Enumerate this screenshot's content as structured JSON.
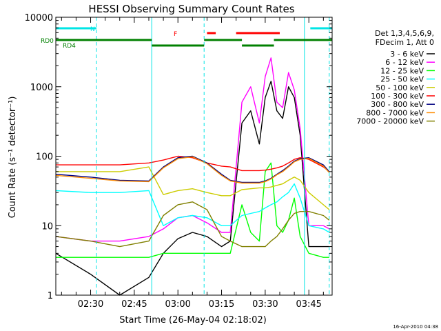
{
  "chart_data": {
    "type": "line",
    "title": "HESSI Observing Summary Count Rates",
    "xlabel": "Start Time (26-May-04 02:18:02)",
    "ylabel": "Count Rate (s⁻¹ detector⁻¹)",
    "yscale": "log",
    "xlim": [
      "02:18:02",
      "03:53:00"
    ],
    "ylim": [
      1,
      10000
    ],
    "x_ticks": [
      "02:30",
      "02:45",
      "03:00",
      "03:15",
      "03:30",
      "03:45"
    ],
    "y_ticks": [
      "1",
      "10",
      "100",
      "1000",
      "10000"
    ],
    "footer_date": "16-Apr-2010 04:38",
    "legend": {
      "header": [
        "Det 1,3,4,5,6,9,",
        "FDecim 1, Att 0"
      ],
      "placement": "right"
    },
    "flags": [
      {
        "name": "N",
        "color": "#00e5e5",
        "intervals": [
          [
            "02:18:02",
            "02:32:00"
          ],
          [
            "03:45:30",
            "03:53:00"
          ]
        ]
      },
      {
        "name": "F",
        "color": "#ff0000",
        "intervals": [
          [
            "03:10:00",
            "03:13:00"
          ],
          [
            "03:20:00",
            "03:35:00"
          ]
        ]
      },
      {
        "name": "RD0",
        "color": "#008000",
        "intervals": [
          [
            "02:18:02",
            "02:51:00"
          ],
          [
            "03:09:00",
            "03:22:00"
          ],
          [
            "03:33:00",
            "03:53:00"
          ]
        ]
      },
      {
        "name": "RD4",
        "color": "#008000",
        "intervals": [
          [
            "02:51:00",
            "03:09:00"
          ],
          [
            "03:22:00",
            "03:33:00"
          ]
        ]
      }
    ],
    "boundaries_cyan": [
      "02:18:02",
      "02:32:00",
      "02:51:00",
      "03:09:00",
      "03:43:30",
      "03:52:00"
    ],
    "series": [
      {
        "name": "3 - 6 keV",
        "color": "#000000",
        "x": [
          "02:18",
          "02:30",
          "02:40",
          "02:50",
          "02:55",
          "03:00",
          "03:05",
          "03:10",
          "03:15",
          "03:18",
          "03:22",
          "03:25",
          "03:28",
          "03:30",
          "03:32",
          "03:34",
          "03:36",
          "03:38",
          "03:40",
          "03:42",
          "03:45",
          "03:50",
          "03:52"
        ],
        "values": [
          4,
          2,
          1,
          1.8,
          4,
          6.5,
          8,
          7,
          5,
          6,
          300,
          450,
          150,
          700,
          1200,
          450,
          350,
          1000,
          700,
          200,
          5,
          5,
          5
        ]
      },
      {
        "name": "6 - 12 keV",
        "color": "#ff00ff",
        "x": [
          "02:18",
          "02:30",
          "02:40",
          "02:50",
          "02:55",
          "03:00",
          "03:05",
          "03:10",
          "03:15",
          "03:18",
          "03:22",
          "03:25",
          "03:28",
          "03:30",
          "03:32",
          "03:34",
          "03:36",
          "03:38",
          "03:40",
          "03:42",
          "03:45",
          "03:50",
          "03:52"
        ],
        "values": [
          7,
          6,
          6,
          7,
          9,
          13,
          14,
          11,
          8,
          8,
          600,
          1000,
          300,
          1400,
          2600,
          600,
          500,
          1600,
          900,
          250,
          10,
          10,
          9
        ]
      },
      {
        "name": "12 - 25 keV",
        "color": "#00ff00",
        "x": [
          "02:18",
          "02:30",
          "02:40",
          "02:50",
          "02:55",
          "03:00",
          "03:05",
          "03:10",
          "03:15",
          "03:18",
          "03:22",
          "03:25",
          "03:28",
          "03:30",
          "03:32",
          "03:34",
          "03:36",
          "03:38",
          "03:40",
          "03:42",
          "03:45",
          "03:50",
          "03:52"
        ],
        "values": [
          3.5,
          3.5,
          3.5,
          3.5,
          4,
          4,
          4,
          4,
          4,
          4,
          20,
          8,
          6,
          60,
          80,
          10,
          8,
          12,
          25,
          7,
          4,
          3.5,
          3.5
        ]
      },
      {
        "name": "25 - 50 keV",
        "color": "#00ffff",
        "x": [
          "02:18",
          "02:30",
          "02:40",
          "02:50",
          "02:55",
          "03:00",
          "03:05",
          "03:10",
          "03:15",
          "03:18",
          "03:22",
          "03:25",
          "03:28",
          "03:30",
          "03:32",
          "03:34",
          "03:36",
          "03:38",
          "03:40",
          "03:42",
          "03:45",
          "03:50",
          "03:52"
        ],
        "values": [
          32,
          30,
          30,
          32,
          10,
          13,
          14,
          13,
          10,
          10,
          14,
          15,
          16,
          18,
          20,
          22,
          26,
          30,
          40,
          25,
          10,
          9,
          8
        ]
      },
      {
        "name": "50 - 100 keV",
        "color": "#cccc00",
        "x": [
          "02:18",
          "02:30",
          "02:40",
          "02:50",
          "02:55",
          "03:00",
          "03:05",
          "03:10",
          "03:15",
          "03:18",
          "03:22",
          "03:25",
          "03:28",
          "03:30",
          "03:32",
          "03:34",
          "03:36",
          "03:38",
          "03:40",
          "03:42",
          "03:45",
          "03:50",
          "03:52"
        ],
        "values": [
          60,
          60,
          60,
          70,
          28,
          32,
          34,
          30,
          27,
          27,
          33,
          34,
          35,
          35,
          36,
          38,
          40,
          45,
          50,
          45,
          30,
          20,
          17
        ]
      },
      {
        "name": "100 - 300 keV",
        "color": "#ff0000",
        "x": [
          "02:18",
          "02:30",
          "02:40",
          "02:50",
          "02:55",
          "03:00",
          "03:05",
          "03:10",
          "03:15",
          "03:18",
          "03:22",
          "03:25",
          "03:28",
          "03:30",
          "03:32",
          "03:34",
          "03:36",
          "03:38",
          "03:40",
          "03:42",
          "03:45",
          "03:50",
          "03:52"
        ],
        "values": [
          75,
          75,
          75,
          80,
          88,
          100,
          95,
          80,
          72,
          70,
          62,
          62,
          62,
          63,
          65,
          68,
          72,
          80,
          90,
          95,
          90,
          70,
          60
        ]
      },
      {
        "name": "300 - 800 keV",
        "color": "#000080",
        "x": [
          "02:18",
          "02:30",
          "02:40",
          "02:50",
          "02:55",
          "03:00",
          "03:05",
          "03:10",
          "03:15",
          "03:18",
          "03:22",
          "03:25",
          "03:28",
          "03:30",
          "03:32",
          "03:34",
          "03:36",
          "03:38",
          "03:40",
          "03:42",
          "03:45",
          "03:50",
          "03:52"
        ],
        "values": [
          55,
          50,
          45,
          44,
          70,
          95,
          100,
          80,
          55,
          45,
          42,
          42,
          42,
          44,
          48,
          55,
          62,
          72,
          85,
          92,
          95,
          75,
          60
        ]
      },
      {
        "name": "800 - 7000 keV",
        "color": "#ff8c00",
        "x": [
          "02:18",
          "02:30",
          "02:40",
          "02:50",
          "02:55",
          "03:00",
          "03:05",
          "03:10",
          "03:15",
          "03:18",
          "03:22",
          "03:25",
          "03:28",
          "03:30",
          "03:32",
          "03:34",
          "03:36",
          "03:38",
          "03:40",
          "03:42",
          "03:45",
          "03:50",
          "03:52"
        ],
        "values": [
          53,
          48,
          44,
          43,
          68,
          92,
          98,
          78,
          53,
          44,
          41,
          41,
          41,
          43,
          47,
          54,
          60,
          70,
          83,
          90,
          93,
          72,
          58
        ]
      },
      {
        "name": "7000 - 20000 keV",
        "color": "#808000",
        "x": [
          "02:18",
          "02:30",
          "02:40",
          "02:50",
          "02:55",
          "03:00",
          "03:05",
          "03:10",
          "03:15",
          "03:18",
          "03:22",
          "03:25",
          "03:28",
          "03:30",
          "03:32",
          "03:34",
          "03:36",
          "03:38",
          "03:40",
          "03:42",
          "03:45",
          "03:50",
          "03:52"
        ],
        "values": [
          7,
          6,
          5,
          6,
          14,
          20,
          22,
          17,
          7,
          6,
          5,
          5,
          5,
          5,
          6,
          7,
          9,
          12,
          15,
          16,
          16,
          14,
          12
        ]
      }
    ]
  }
}
